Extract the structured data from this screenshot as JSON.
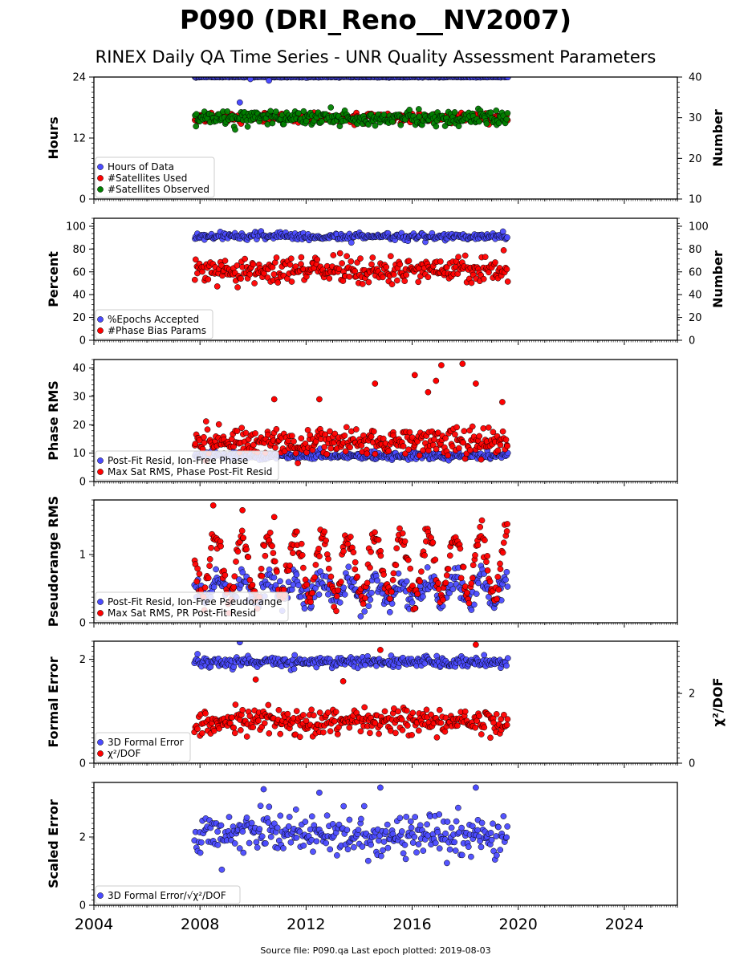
{
  "figure": {
    "title": "P090 (DRI_Reno__NV2007)",
    "subtitle": "RINEX Daily QA Time Series - UNR Quality Assessment Parameters",
    "footer": "Source file: P090.qa Last epoch plotted: 2019-08-03"
  },
  "chart_data": [
    {
      "type": "scatter",
      "xlim": [
        2004,
        2026
      ],
      "x_ticks": [
        "2004",
        "2008",
        "2012",
        "2016",
        "2020",
        "2024"
      ],
      "ylabel": "Hours",
      "ylim": [
        0,
        24
      ],
      "y_ticks": [
        "0",
        "12",
        "24"
      ],
      "ylabel_right": "Number",
      "ylim_right": [
        10,
        40
      ],
      "y_ticks_right": [
        "10",
        "20",
        "30",
        "40"
      ],
      "legend_position": "lower-left",
      "series": [
        {
          "name": "Hours of Data",
          "color": "#4b4bff",
          "axis": "left",
          "x_range": [
            2007.8,
            2019.6
          ],
          "typical": 24.0,
          "spread": 0.05,
          "outliers": [
            {
              "x": 2009.5,
              "y": 19.0
            },
            {
              "x": 2009.9,
              "y": 23.6
            },
            {
              "x": 2010.6,
              "y": 23.3
            }
          ]
        },
        {
          "name": "#Satellites Used",
          "color": "#ff0000",
          "axis": "right",
          "x_range": [
            2007.8,
            2019.6
          ],
          "typical": 30.0,
          "spread": 0.6
        },
        {
          "name": "#Satellites Observed",
          "color": "#008000",
          "axis": "right",
          "x_range": [
            2007.8,
            2019.6
          ],
          "typical": 30.0,
          "spread": 0.9
        }
      ]
    },
    {
      "type": "scatter",
      "xlim": [
        2004,
        2026
      ],
      "ylabel": "Percent",
      "ylim": [
        0,
        107
      ],
      "y_ticks": [
        "0",
        "20",
        "40",
        "60",
        "80",
        "100"
      ],
      "ylabel_right": "Number",
      "ylim_right": [
        0,
        107
      ],
      "y_ticks_right": [
        "0",
        "20",
        "40",
        "60",
        "80",
        "100"
      ],
      "legend_position": "lower-left",
      "series": [
        {
          "name": "%Epochs Accepted",
          "color": "#4b4bff",
          "axis": "left",
          "x_range": [
            2007.8,
            2019.6
          ],
          "typical": 91,
          "spread": 1.5
        },
        {
          "name": "#Phase Bias Params",
          "color": "#ff0000",
          "axis": "right",
          "x_range": [
            2007.8,
            2019.6
          ],
          "typical": 61,
          "spread": 5.5
        }
      ]
    },
    {
      "type": "scatter",
      "xlim": [
        2004,
        2026
      ],
      "ylabel": "Phase RMS",
      "ylim": [
        0,
        43
      ],
      "y_ticks": [
        "0",
        "10",
        "20",
        "30",
        "40"
      ],
      "legend_position": "lower-left",
      "series": [
        {
          "name": "Post-Fit Resid, Ion-Free Phase",
          "color": "#4b4bff",
          "axis": "left",
          "x_range": [
            2007.8,
            2019.6
          ],
          "typical": 9,
          "spread": 0.7
        },
        {
          "name": "Max Sat RMS, Phase Post-Fit Resid",
          "color": "#ff0000",
          "axis": "left",
          "x_range": [
            2007.8,
            2019.6
          ],
          "typical": 14,
          "spread": 2.5,
          "outliers": [
            {
              "x": 2016.1,
              "y": 37.5
            },
            {
              "x": 2017.1,
              "y": 41.0
            },
            {
              "x": 2017.9,
              "y": 41.5
            },
            {
              "x": 2016.9,
              "y": 35.5
            },
            {
              "x": 2018.4,
              "y": 34.5
            },
            {
              "x": 2014.6,
              "y": 34.5
            },
            {
              "x": 2016.6,
              "y": 31.5
            },
            {
              "x": 2019.4,
              "y": 28.0
            },
            {
              "x": 2010.8,
              "y": 29.0
            },
            {
              "x": 2012.5,
              "y": 29.0
            }
          ]
        }
      ]
    },
    {
      "type": "scatter",
      "xlim": [
        2004,
        2026
      ],
      "ylabel": "Pseudorange RMS",
      "ylim": [
        0,
        1.8
      ],
      "y_ticks": [
        "0",
        "1"
      ],
      "legend_position": "lower-left",
      "series": [
        {
          "name": "Post-Fit Resid, Ion-Free Pseudorange",
          "color": "#4b4bff",
          "axis": "left",
          "x_range": [
            2007.8,
            2019.6
          ],
          "typical": 0.5,
          "spread": 0.1,
          "seasonal_amp": 0.15
        },
        {
          "name": "Max Sat RMS, PR Post-Fit Resid",
          "color": "#ff0000",
          "axis": "left",
          "x_range": [
            2007.8,
            2019.6
          ],
          "typical": 0.85,
          "spread": 0.1,
          "seasonal_amp": 0.45,
          "outliers": [
            {
              "x": 2008.5,
              "y": 1.72
            },
            {
              "x": 2009.6,
              "y": 1.65
            },
            {
              "x": 2010.8,
              "y": 1.55
            }
          ]
        }
      ]
    },
    {
      "type": "scatter",
      "xlim": [
        2004,
        2026
      ],
      "ylabel": "Formal Error",
      "ylim": [
        0,
        2.35
      ],
      "y_ticks": [
        "0",
        "2"
      ],
      "ylabel_right": "χ²/DOF",
      "ylim_right": [
        0,
        3.5
      ],
      "y_ticks_right": [
        "0",
        "2"
      ],
      "legend_position": "lower-left",
      "series": [
        {
          "name": "3D Formal Error",
          "color": "#4b4bff",
          "axis": "left",
          "x_range": [
            2007.8,
            2019.6
          ],
          "typical": 1.95,
          "spread": 0.05,
          "outliers": [
            {
              "x": 2009.5,
              "y": 2.33
            }
          ]
        },
        {
          "name": "χ²/DOF",
          "color": "#ff0000",
          "axis": "right",
          "x_range": [
            2007.8,
            2019.6
          ],
          "typical": 1.2,
          "spread": 0.2,
          "outliers": [
            {
              "x": 2014.8,
              "y": 3.25
            },
            {
              "x": 2018.4,
              "y": 3.4
            },
            {
              "x": 2010.1,
              "y": 2.4
            },
            {
              "x": 2013.4,
              "y": 2.35
            }
          ]
        }
      ]
    },
    {
      "type": "scatter",
      "xlim": [
        2004,
        2026
      ],
      "ylabel": "Scaled Error",
      "ylim": [
        0,
        3.6
      ],
      "y_ticks": [
        "0",
        "2"
      ],
      "legend_position": "lower-left",
      "series": [
        {
          "name": "3D Formal Error/√χ²/DOF",
          "color": "#4b4bff",
          "axis": "left",
          "x_range": [
            2007.8,
            2019.6
          ],
          "typical": 2.05,
          "spread": 0.3,
          "outliers": [
            {
              "x": 2014.8,
              "y": 3.45
            },
            {
              "x": 2018.4,
              "y": 3.45
            },
            {
              "x": 2010.4,
              "y": 3.4
            },
            {
              "x": 2012.5,
              "y": 3.3
            }
          ]
        }
      ]
    }
  ]
}
